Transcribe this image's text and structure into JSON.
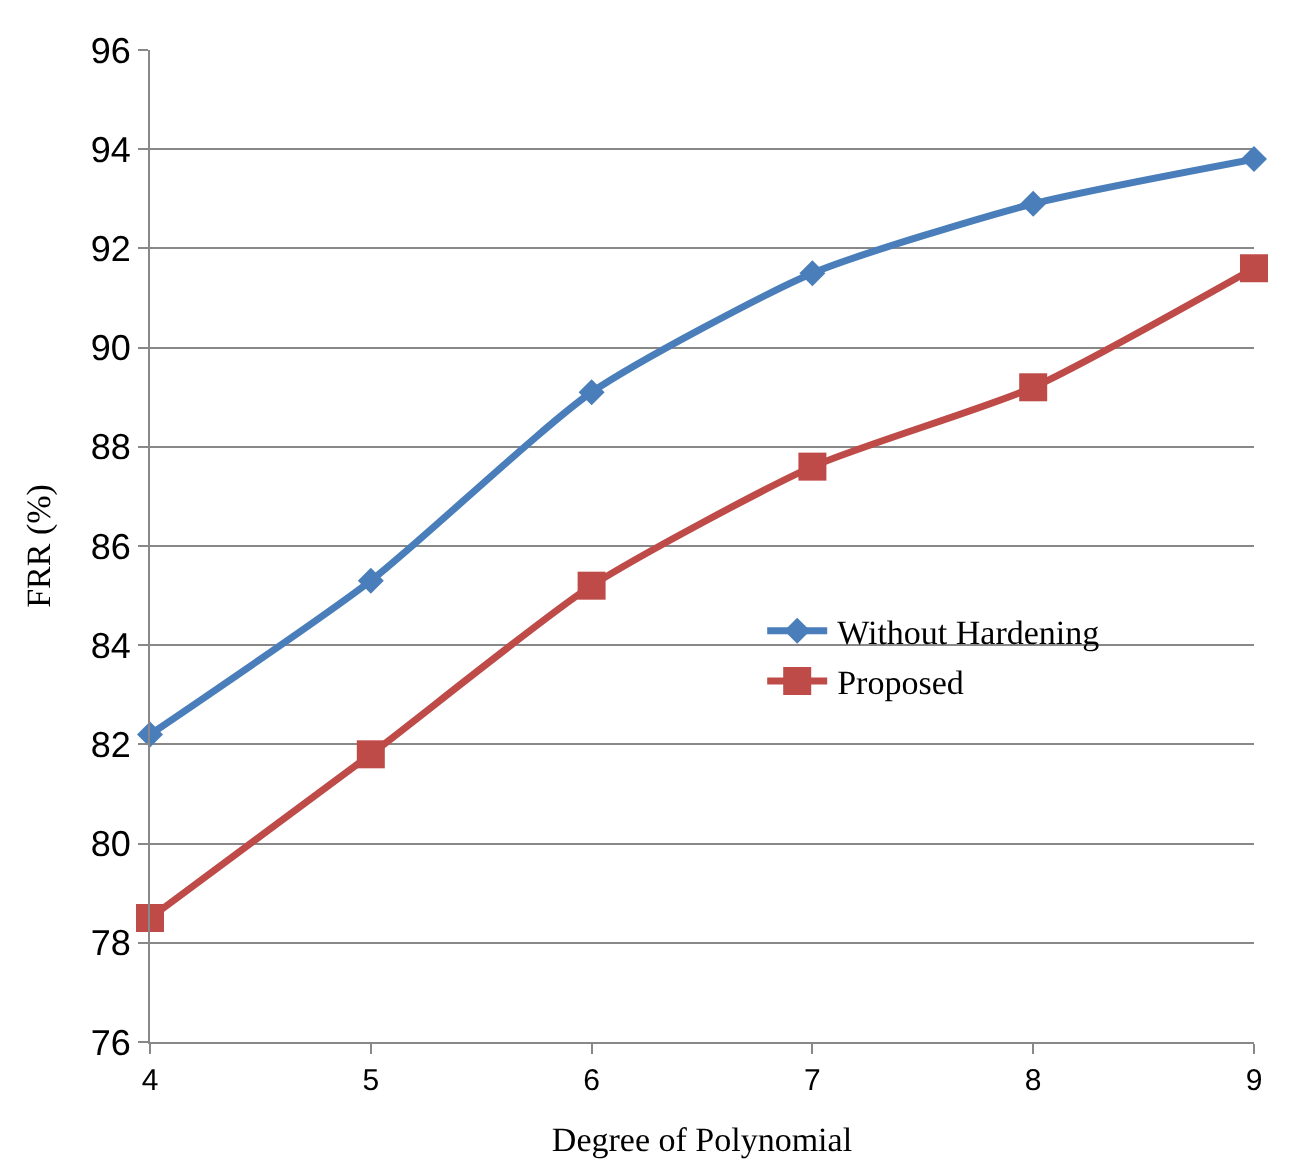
{
  "chart_data": {
    "type": "line",
    "xlabel": "Degree of Polynomial",
    "ylabel": "FRR (%)",
    "x": [
      4,
      5,
      6,
      7,
      8,
      9
    ],
    "series": [
      {
        "name": "Without Hardening",
        "color": "#4a7ebb",
        "marker": "diamond",
        "values": [
          82.2,
          85.3,
          89.1,
          91.5,
          92.9,
          93.8
        ]
      },
      {
        "name": "Proposed",
        "color": "#be4b48",
        "marker": "square",
        "values": [
          78.5,
          81.8,
          85.2,
          87.6,
          89.2,
          91.6
        ]
      }
    ],
    "xlim": [
      4,
      9
    ],
    "xticks": [
      4,
      5,
      6,
      7,
      8,
      9
    ],
    "ylim": [
      76,
      96
    ],
    "yticks": [
      76,
      78,
      80,
      82,
      84,
      86,
      88,
      90,
      92,
      94,
      96
    ],
    "grid": "y",
    "legend": "right",
    "line_style": "solid"
  }
}
